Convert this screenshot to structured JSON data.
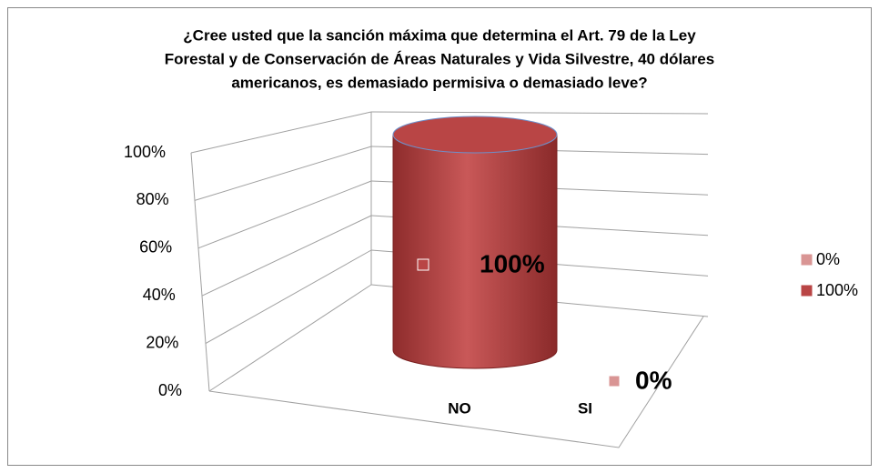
{
  "chart_data": {
    "type": "cylinder",
    "title_lines": [
      "¿Cree usted que la sanción máxima que determina el Art. 79 de la Ley",
      "Forestal y de Conservación de Áreas Naturales y Vida Silvestre, 40 dólares",
      "americanos, es demasiado permisiva o demasiado leve?"
    ],
    "categories": [
      "NO",
      "SI"
    ],
    "values": [
      100,
      0
    ],
    "value_labels": [
      "100%",
      "0%"
    ],
    "color": "#b94545",
    "ylim": [
      0,
      100
    ],
    "yticks": [
      {
        "value": 0,
        "label": "0%"
      },
      {
        "value": 20,
        "label": "20%"
      },
      {
        "value": 40,
        "label": "40%"
      },
      {
        "value": 60,
        "label": "60%"
      },
      {
        "value": 80,
        "label": "80%"
      },
      {
        "value": 100,
        "label": "100%"
      }
    ],
    "grid": true,
    "legend": [
      {
        "label": "0%",
        "color": "#d99594"
      },
      {
        "label": "100%",
        "color": "#b94545"
      }
    ],
    "legend_position": "right"
  }
}
